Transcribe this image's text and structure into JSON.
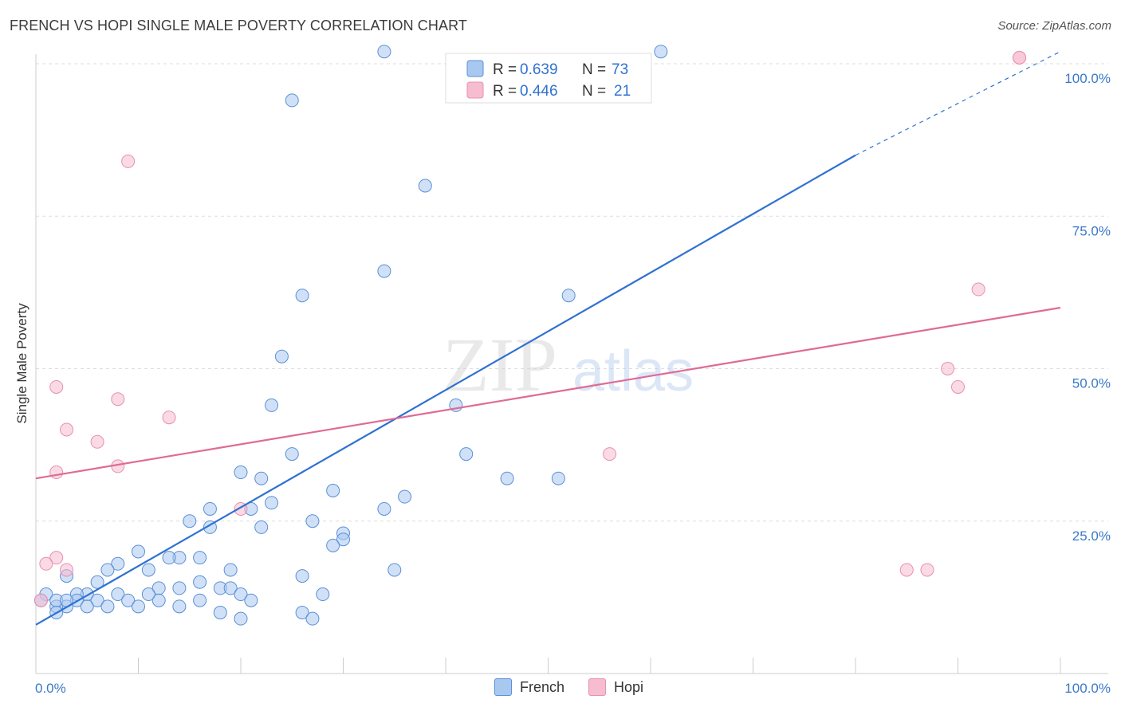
{
  "header": {
    "title": "FRENCH VS HOPI SINGLE MALE POVERTY CORRELATION CHART",
    "source": "Source: ZipAtlas.com"
  },
  "watermark": {
    "zip": "ZIP",
    "atlas": "atlas"
  },
  "colors": {
    "french_fill": "#a9c8f0",
    "french_stroke": "#5b8fd6",
    "french_line": "#2f72d1",
    "hopi_fill": "#f6bcd0",
    "hopi_stroke": "#e890ad",
    "hopi_line": "#e06a94",
    "tick_text": "#3a79c9",
    "grid": "#dddddd"
  },
  "legend_top": {
    "rows": [
      {
        "r_label": "R =",
        "r_value": "0.639",
        "n_label": "N =",
        "n_value": "73"
      },
      {
        "r_label": "R =",
        "r_value": "0.446",
        "n_label": "N =",
        "n_value": "21"
      }
    ]
  },
  "legend_bottom": {
    "french": "French",
    "hopi": "Hopi"
  },
  "chart_data": {
    "type": "scatter",
    "title": "FRENCH VS HOPI SINGLE MALE POVERTY CORRELATION CHART",
    "xlabel": "",
    "ylabel": "Single Male Poverty",
    "xlim": [
      0,
      100
    ],
    "ylim": [
      0,
      100
    ],
    "x_tick_labels": [
      "0.0%",
      "100.0%"
    ],
    "y_tick_labels": [
      {
        "value": 25,
        "label": "25.0%"
      },
      {
        "value": 50,
        "label": "50.0%"
      },
      {
        "value": 75,
        "label": "75.0%"
      },
      {
        "value": 100,
        "label": "100.0%"
      }
    ],
    "grid": true,
    "legend_placement": "bottom",
    "series": [
      {
        "name": "French",
        "stats": {
          "R": 0.639,
          "N": 73
        },
        "trend": {
          "x0": 0,
          "y0": 8,
          "x1": 80,
          "y1": 85,
          "dashed_to": {
            "x": 100,
            "y": 102
          }
        },
        "points": [
          [
            34,
            102
          ],
          [
            61,
            102
          ],
          [
            25,
            94
          ],
          [
            38,
            80
          ],
          [
            34,
            66
          ],
          [
            26,
            62
          ],
          [
            52,
            62
          ],
          [
            24,
            52
          ],
          [
            23,
            44
          ],
          [
            41,
            44
          ],
          [
            42,
            36
          ],
          [
            25,
            36
          ],
          [
            20,
            33
          ],
          [
            22,
            32
          ],
          [
            46,
            32
          ],
          [
            51,
            32
          ],
          [
            29,
            30
          ],
          [
            36,
            29
          ],
          [
            23,
            28
          ],
          [
            17,
            27
          ],
          [
            21,
            27
          ],
          [
            34,
            27
          ],
          [
            15,
            25
          ],
          [
            27,
            25
          ],
          [
            17,
            24
          ],
          [
            22,
            24
          ],
          [
            30,
            23
          ],
          [
            30,
            22
          ],
          [
            29,
            21
          ],
          [
            10,
            20
          ],
          [
            14,
            19
          ],
          [
            13,
            19
          ],
          [
            16,
            19
          ],
          [
            8,
            18
          ],
          [
            19,
            17
          ],
          [
            11,
            17
          ],
          [
            35,
            17
          ],
          [
            7,
            17
          ],
          [
            26,
            16
          ],
          [
            3,
            16
          ],
          [
            6,
            15
          ],
          [
            16,
            15
          ],
          [
            18,
            14
          ],
          [
            12,
            14
          ],
          [
            19,
            14
          ],
          [
            14,
            14
          ],
          [
            28,
            13
          ],
          [
            20,
            13
          ],
          [
            8,
            13
          ],
          [
            12,
            12
          ],
          [
            5,
            13
          ],
          [
            6,
            12
          ],
          [
            4,
            13
          ],
          [
            16,
            12
          ],
          [
            9,
            12
          ],
          [
            10,
            11
          ],
          [
            3,
            11
          ],
          [
            2,
            11
          ],
          [
            20,
            9
          ],
          [
            26,
            10
          ],
          [
            18,
            10
          ],
          [
            14,
            11
          ],
          [
            1,
            13
          ],
          [
            2,
            12
          ],
          [
            21,
            12
          ],
          [
            4,
            12
          ],
          [
            5,
            11
          ],
          [
            3,
            12
          ],
          [
            7,
            11
          ],
          [
            2,
            10
          ],
          [
            0.5,
            12
          ],
          [
            11,
            13
          ],
          [
            27,
            9
          ]
        ]
      },
      {
        "name": "Hopi",
        "stats": {
          "R": 0.446,
          "N": 21
        },
        "trend": {
          "x0": 0,
          "y0": 32,
          "x1": 100,
          "y1": 60
        },
        "points": [
          [
            96,
            101
          ],
          [
            96,
            101
          ],
          [
            9,
            84
          ],
          [
            92,
            63
          ],
          [
            89,
            50
          ],
          [
            90,
            47
          ],
          [
            2,
            47
          ],
          [
            8,
            45
          ],
          [
            13,
            42
          ],
          [
            3,
            40
          ],
          [
            6,
            38
          ],
          [
            56,
            36
          ],
          [
            8,
            34
          ],
          [
            2,
            33
          ],
          [
            20,
            27
          ],
          [
            2,
            19
          ],
          [
            1,
            18
          ],
          [
            3,
            17
          ],
          [
            85,
            17
          ],
          [
            87,
            17
          ],
          [
            0.5,
            12
          ]
        ]
      }
    ]
  }
}
